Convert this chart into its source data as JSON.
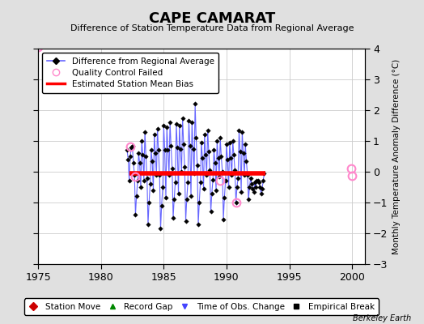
{
  "title": "CAPE CAMARAT",
  "subtitle": "Difference of Station Temperature Data from Regional Average",
  "ylabel": "Monthly Temperature Anomaly Difference (°C)",
  "xlabel_credit": "Berkeley Earth",
  "xlim": [
    1975,
    2001
  ],
  "ylim": [
    -3,
    4
  ],
  "yticks": [
    -3,
    -2,
    -1,
    0,
    1,
    2,
    3,
    4
  ],
  "xticks": [
    1975,
    1980,
    1985,
    1990,
    1995,
    2000
  ],
  "bias_line_x": [
    1982.3,
    1993.1
  ],
  "bias_line_y": [
    -0.05,
    -0.05
  ],
  "background_color": "#e0e0e0",
  "plot_bg_color": "#ffffff",
  "line_color": "#6666ff",
  "marker_color": "#000000",
  "bias_color": "#ff0000",
  "qc_fail_color": "#ff88cc",
  "data_x": [
    1982.08,
    1982.17,
    1982.25,
    1982.33,
    1982.42,
    1982.5,
    1982.58,
    1982.67,
    1982.75,
    1982.83,
    1982.92,
    1983.0,
    1983.08,
    1983.17,
    1983.25,
    1983.33,
    1983.42,
    1983.5,
    1983.58,
    1983.67,
    1983.75,
    1983.83,
    1983.92,
    1984.0,
    1984.08,
    1984.17,
    1984.25,
    1984.33,
    1984.42,
    1984.5,
    1984.58,
    1984.67,
    1984.75,
    1984.83,
    1984.92,
    1985.0,
    1985.08,
    1985.17,
    1985.25,
    1985.33,
    1985.42,
    1985.5,
    1985.58,
    1985.67,
    1985.75,
    1985.83,
    1985.92,
    1986.0,
    1986.08,
    1986.17,
    1986.25,
    1986.33,
    1986.42,
    1986.5,
    1986.58,
    1986.67,
    1986.75,
    1986.83,
    1986.92,
    1987.0,
    1987.08,
    1987.17,
    1987.25,
    1987.33,
    1987.42,
    1987.5,
    1987.58,
    1987.67,
    1987.75,
    1987.83,
    1987.92,
    1988.0,
    1988.08,
    1988.17,
    1988.25,
    1988.33,
    1988.42,
    1988.5,
    1988.58,
    1988.67,
    1988.75,
    1988.83,
    1988.92,
    1989.0,
    1989.08,
    1989.17,
    1989.25,
    1989.33,
    1989.42,
    1989.5,
    1989.58,
    1989.67,
    1989.75,
    1989.83,
    1989.92,
    1990.0,
    1990.08,
    1990.17,
    1990.25,
    1990.33,
    1990.42,
    1990.5,
    1990.58,
    1990.67,
    1990.75,
    1990.83,
    1990.92,
    1991.0,
    1991.08,
    1991.17,
    1991.25,
    1991.33,
    1991.42,
    1991.5,
    1991.58,
    1991.67,
    1991.75,
    1991.83,
    1991.92,
    1992.0,
    1992.08,
    1992.17,
    1992.25,
    1992.33,
    1992.42,
    1992.5,
    1992.58,
    1992.67,
    1992.75,
    1992.83,
    1992.92,
    1993.0
  ],
  "data_y": [
    0.7,
    0.4,
    -0.3,
    0.5,
    0.8,
    0.85,
    0.3,
    -0.1,
    -1.4,
    -0.8,
    -0.3,
    0.6,
    0.3,
    -0.5,
    1.0,
    0.55,
    -0.3,
    1.3,
    0.5,
    -0.2,
    -1.7,
    -1.0,
    -0.4,
    0.7,
    0.35,
    -0.6,
    1.2,
    0.6,
    -0.1,
    1.4,
    0.7,
    -0.1,
    -1.85,
    -1.1,
    -0.5,
    1.5,
    0.7,
    -0.85,
    1.45,
    0.7,
    -0.1,
    1.6,
    0.85,
    0.1,
    -1.5,
    -0.9,
    -0.35,
    1.55,
    0.8,
    -0.7,
    1.5,
    0.75,
    0.0,
    1.75,
    0.9,
    0.15,
    -1.6,
    -0.9,
    -0.35,
    1.65,
    0.85,
    -0.8,
    1.6,
    0.75,
    -0.05,
    2.2,
    1.1,
    0.2,
    -1.7,
    -1.0,
    -0.35,
    0.95,
    0.45,
    -0.55,
    1.2,
    0.55,
    -0.1,
    1.35,
    0.65,
    0.05,
    -1.3,
    -0.7,
    -0.25,
    0.7,
    0.3,
    -0.6,
    1.0,
    0.45,
    -0.15,
    1.1,
    0.5,
    0.0,
    -1.55,
    -0.85,
    -0.3,
    0.9,
    0.4,
    -0.5,
    0.95,
    0.45,
    -0.1,
    1.0,
    0.55,
    0.05,
    -1.0,
    -0.5,
    -0.2,
    1.35,
    0.65,
    -0.65,
    1.3,
    0.6,
    -0.1,
    0.9,
    0.35,
    -0.1,
    -0.9,
    -0.5,
    -0.2,
    -0.4,
    -0.55,
    -0.65,
    -0.35,
    -0.5,
    -0.3,
    -0.3,
    -0.35,
    -0.5,
    -0.7,
    -0.55,
    -0.3,
    -0.05
  ],
  "qc_fail_points": [
    [
      1975.0,
      4.05
    ],
    [
      1982.33,
      0.82
    ],
    [
      1982.75,
      -0.15
    ],
    [
      1989.5,
      -0.3
    ],
    [
      1990.75,
      -1.0
    ],
    [
      1999.92,
      0.1
    ],
    [
      2000.0,
      -0.12
    ]
  ],
  "legend2_items": [
    {
      "label": "Station Move",
      "color": "#cc0000",
      "marker": "D"
    },
    {
      "label": "Record Gap",
      "color": "#008800",
      "marker": "^"
    },
    {
      "label": "Time of Obs. Change",
      "color": "#4444ff",
      "marker": "v"
    },
    {
      "label": "Empirical Break",
      "color": "#000000",
      "marker": "s"
    }
  ]
}
